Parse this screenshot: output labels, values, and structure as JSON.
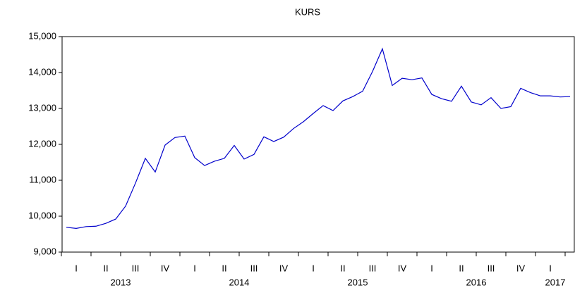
{
  "chart_data": {
    "type": "line",
    "title": "KURS",
    "categories": [
      null,
      "I",
      null,
      null,
      "II",
      null,
      null,
      "III",
      null,
      null,
      "IV",
      null,
      null,
      "I",
      null,
      null,
      "II",
      null,
      null,
      "III",
      null,
      null,
      "IV",
      null,
      null,
      "I",
      null,
      null,
      "II",
      null,
      null,
      "III",
      null,
      null,
      "IV",
      null,
      null,
      "I",
      null,
      null,
      "II",
      null,
      null,
      "III",
      null,
      null,
      "IV",
      null,
      null,
      "I",
      null,
      null
    ],
    "years": [
      "2013",
      "2014",
      "2015",
      "2016",
      "2017"
    ],
    "series": [
      {
        "name": "KURS",
        "color": "#0000cc",
        "values": [
          9690,
          9660,
          9710,
          9720,
          9800,
          9920,
          10280,
          10920,
          11610,
          11230,
          11980,
          12190,
          12230,
          11630,
          11410,
          11530,
          11610,
          11970,
          11590,
          11720,
          12210,
          12080,
          12200,
          12440,
          12630,
          12860,
          13080,
          12940,
          13210,
          13330,
          13480,
          14030,
          14660,
          13640,
          13840,
          13800,
          13850,
          13390,
          13270,
          13200,
          13620,
          13180,
          13100,
          13300,
          13000,
          13050,
          13560,
          13440,
          13350,
          13350,
          13320,
          13330
        ]
      }
    ],
    "ylim": [
      9000,
      15000
    ],
    "yticks": [
      {
        "value": 9000,
        "label": "9,000"
      },
      {
        "value": 10000,
        "label": "10,000"
      },
      {
        "value": 11000,
        "label": "11,000"
      },
      {
        "value": 12000,
        "label": "12,000"
      },
      {
        "value": 13000,
        "label": "13,000"
      },
      {
        "value": 14000,
        "label": "14,000"
      },
      {
        "value": 15000,
        "label": "15,000"
      }
    ]
  }
}
